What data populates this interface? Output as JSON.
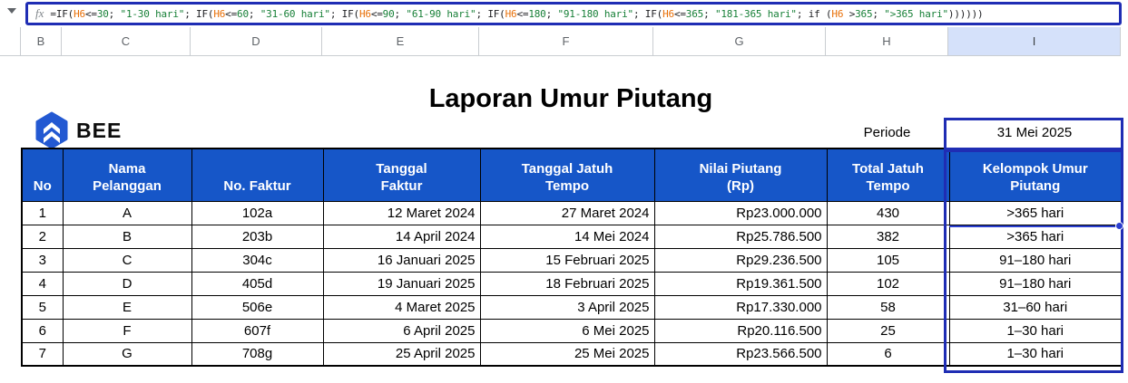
{
  "formula_bar": {
    "fx_label": "fx",
    "formula_full": "=IF(H6<=30; \"1-30 hari\"; IF(H6<=60; \"31-60 hari\"; IF(H6<=90; \"61-90 hari\"; IF(H6<=180; \"91-180 hari\"; IF(H6<=365; \"181-365 hari\"; if (H6 >365; \">365 hari\"))))))",
    "tokens": [
      {
        "t": "=IF(",
        "c": "d"
      },
      {
        "t": "H6",
        "c": "ref"
      },
      {
        "t": "<=",
        "c": "d"
      },
      {
        "t": "30",
        "c": "num"
      },
      {
        "t": "; ",
        "c": "d"
      },
      {
        "t": "\"1-30 hari\"",
        "c": "str"
      },
      {
        "t": "; IF(",
        "c": "d"
      },
      {
        "t": "H6",
        "c": "ref"
      },
      {
        "t": "<=",
        "c": "d"
      },
      {
        "t": "60",
        "c": "num"
      },
      {
        "t": "; ",
        "c": "d"
      },
      {
        "t": "\"31-60 hari\"",
        "c": "str"
      },
      {
        "t": "; IF(",
        "c": "d"
      },
      {
        "t": "H6",
        "c": "ref"
      },
      {
        "t": "<=",
        "c": "d"
      },
      {
        "t": "90",
        "c": "num"
      },
      {
        "t": "; ",
        "c": "d"
      },
      {
        "t": "\"61-90 hari\"",
        "c": "str"
      },
      {
        "t": "; IF(",
        "c": "d"
      },
      {
        "t": "H6",
        "c": "ref"
      },
      {
        "t": "<=",
        "c": "d"
      },
      {
        "t": "180",
        "c": "num"
      },
      {
        "t": "; ",
        "c": "d"
      },
      {
        "t": "\"91-180 hari\"",
        "c": "str"
      },
      {
        "t": "; IF(",
        "c": "d"
      },
      {
        "t": "H6",
        "c": "ref"
      },
      {
        "t": "<=",
        "c": "d"
      },
      {
        "t": "365",
        "c": "num"
      },
      {
        "t": "; ",
        "c": "d"
      },
      {
        "t": "\"181-365 hari\"",
        "c": "str"
      },
      {
        "t": "; if (",
        "c": "d"
      },
      {
        "t": "H6",
        "c": "ref"
      },
      {
        "t": " >",
        "c": "d"
      },
      {
        "t": "365",
        "c": "num"
      },
      {
        "t": "; ",
        "c": "d"
      },
      {
        "t": "\">365 hari\"",
        "c": "str"
      },
      {
        "t": "))))))",
        "c": "d"
      }
    ]
  },
  "column_headers": {
    "letters": [
      "B",
      "C",
      "D",
      "E",
      "F",
      "G",
      "H",
      "I"
    ],
    "selected": "I"
  },
  "sheet": {
    "title": "Laporan Umur Piutang",
    "logo_text": "BEE",
    "periode_label": "Periode",
    "periode_value": "31 Mei 2025"
  },
  "table": {
    "headers": [
      "No",
      "Nama\nPelanggan",
      "No. Faktur",
      "Tanggal\nFaktur",
      "Tanggal Jatuh\nTempo",
      "Nilai Piutang\n(Rp)",
      "Total Jatuh\nTempo",
      "Kelompok Umur\nPiutang"
    ],
    "rows": [
      [
        "1",
        "A",
        "102a",
        "12 Maret 2024",
        "27 Maret 2024",
        "Rp23.000.000",
        "430",
        ">365 hari"
      ],
      [
        "2",
        "B",
        "203b",
        "14 April 2024",
        "14 Mei 2024",
        "Rp25.786.500",
        "382",
        ">365 hari"
      ],
      [
        "3",
        "C",
        "304c",
        "16 Januari 2025",
        "15 Februari 2025",
        "Rp29.236.500",
        "105",
        "91–180 hari"
      ],
      [
        "4",
        "D",
        "405d",
        "19 Januari 2025",
        "18 Februari 2025",
        "Rp19.361.500",
        "102",
        "91–180 hari"
      ],
      [
        "5",
        "E",
        "506e",
        "4 Maret 2025",
        "3 April 2025",
        "Rp17.330.000",
        "58",
        "31–60 hari"
      ],
      [
        "6",
        "F",
        "607f",
        "6 April 2025",
        "6 Mei 2025",
        "Rp20.116.500",
        "25",
        "1–30 hari"
      ],
      [
        "7",
        "G",
        "708g",
        "25 April 2025",
        "25 Mei 2025",
        "Rp23.566.500",
        "6",
        "1–30 hari"
      ]
    ]
  },
  "colors": {
    "table_header_blue": "#1656c8",
    "annotation_navy": "#1f2db4",
    "due_date_pink": "#f1bcc0",
    "due_date_text": "#3a0f10",
    "selected_column_bg": "#d5e1fa",
    "formula_ref_orange": "#e8710a",
    "formula_literal_green": "#188038",
    "logo_blue": "#2359d2"
  }
}
